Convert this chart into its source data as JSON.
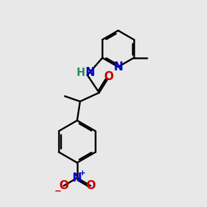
{
  "bg_color": "#e8e8e8",
  "bond_color": "#000000",
  "bond_width": 1.8,
  "dbo": 0.055,
  "atom_colors": {
    "N": "#0000cc",
    "O": "#cc0000",
    "NH": "#2e8b57"
  },
  "fs": 12,
  "fs_small": 9
}
